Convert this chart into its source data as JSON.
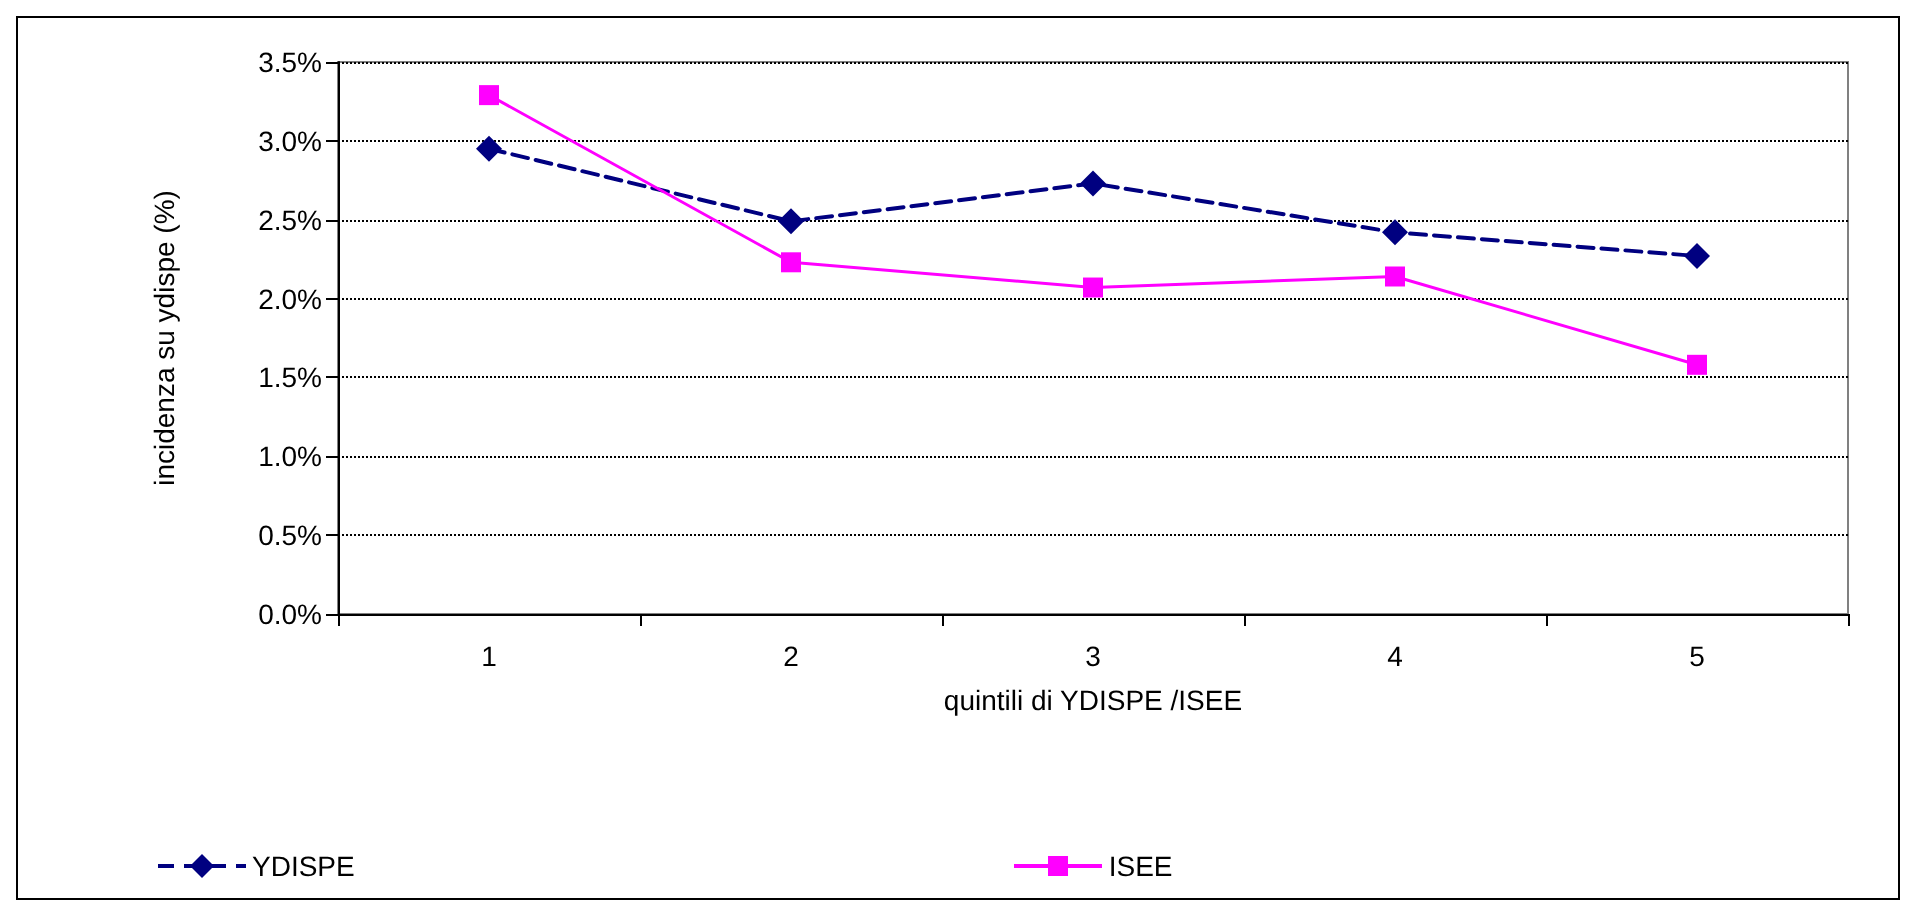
{
  "chart_data": {
    "type": "line",
    "xlabel": "quintili di YDISPE /ISEE",
    "ylabel": "incidenza su ydispe (%)",
    "categories": [
      "1",
      "2",
      "3",
      "4",
      "5"
    ],
    "series": [
      {
        "name": "YDISPE",
        "color": "#000080",
        "marker": "diamond",
        "line_style": "dashed",
        "values": [
          2.95,
          2.49,
          2.73,
          2.42,
          2.27
        ]
      },
      {
        "name": "ISEE",
        "color": "#ff00ff",
        "marker": "square",
        "line_style": "solid",
        "values": [
          3.29,
          2.23,
          2.07,
          2.14,
          1.58
        ]
      }
    ],
    "ylim": [
      0,
      3.5
    ],
    "yticks": [
      {
        "value": 0,
        "label": "0.0%"
      },
      {
        "value": 0.5,
        "label": "0.5%"
      },
      {
        "value": 1,
        "label": "1.0%"
      },
      {
        "value": 1.5,
        "label": "1.5%"
      },
      {
        "value": 2,
        "label": "2.0%"
      },
      {
        "value": 2.5,
        "label": "2.5%"
      },
      {
        "value": 3,
        "label": "3.0%"
      },
      {
        "value": 3.5,
        "label": "3.5%"
      }
    ],
    "grid": "y",
    "legend": "bottom"
  }
}
